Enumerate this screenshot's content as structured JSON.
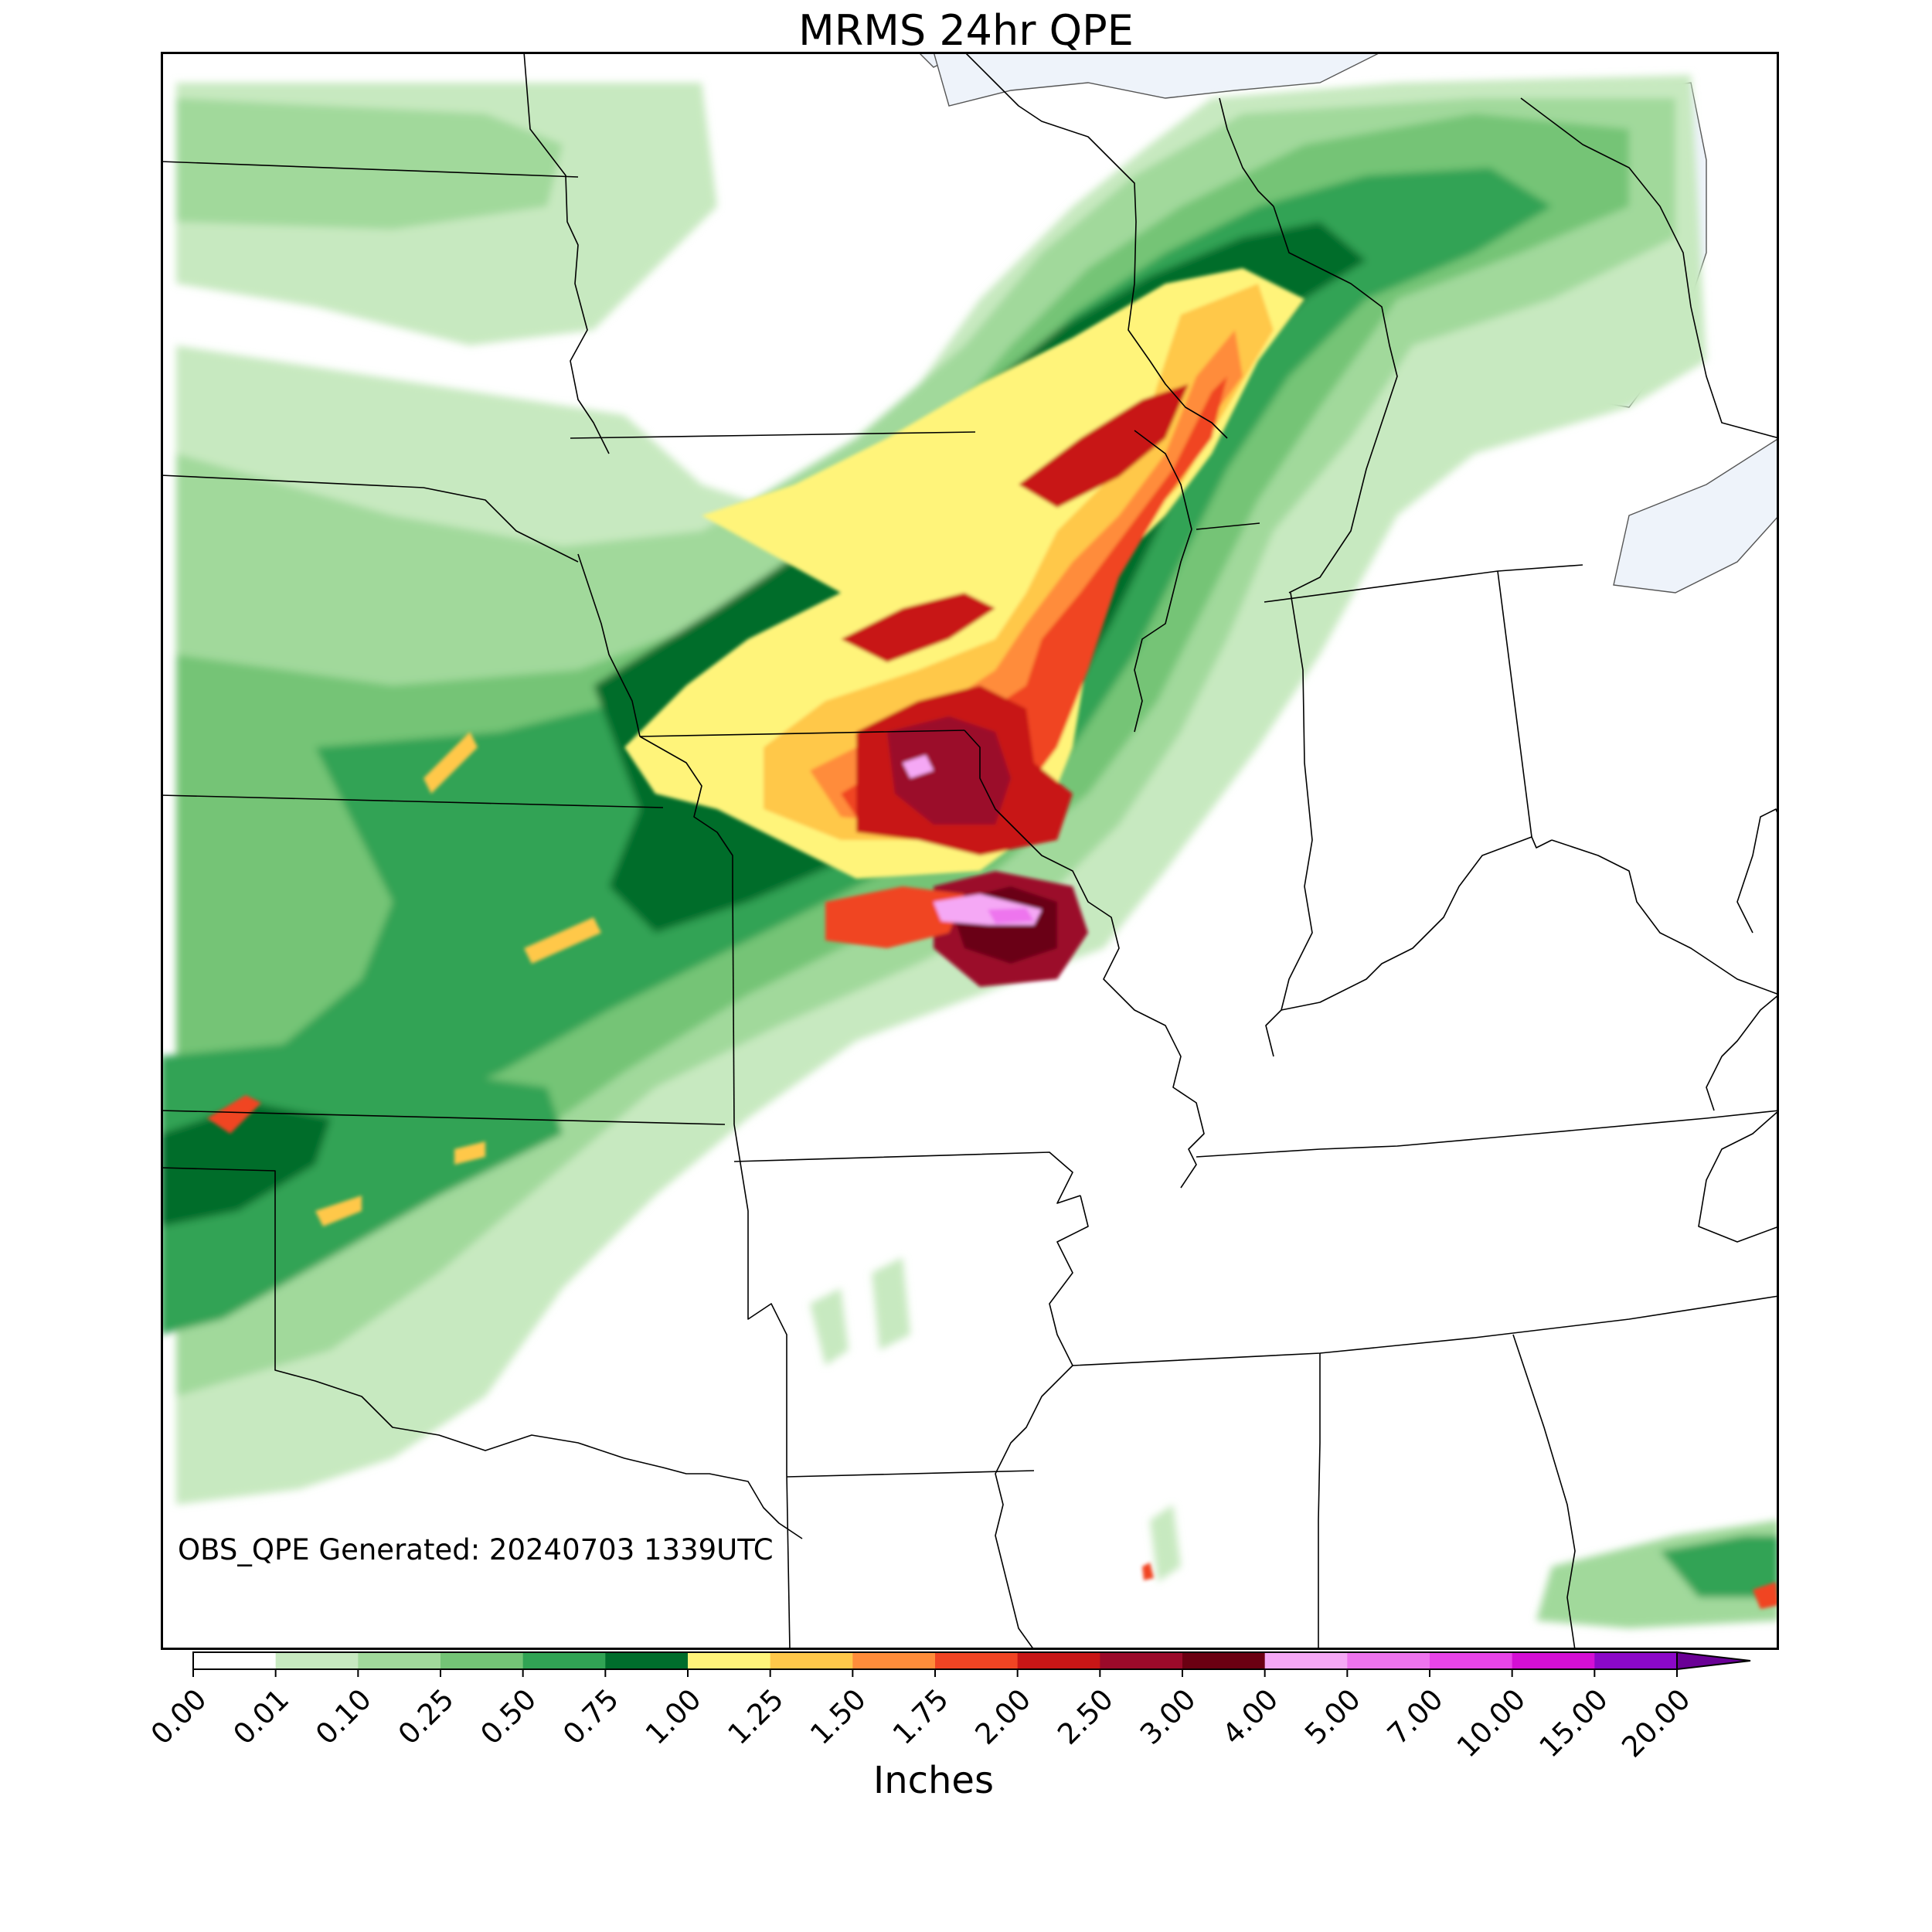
{
  "title": "MRMS 24hr QPE",
  "generated_label": "OBS_QPE Generated: 20240703 1339UTC",
  "colorbar": {
    "label": "Inches",
    "boundaries": [
      "0.00",
      "0.01",
      "0.10",
      "0.25",
      "0.50",
      "0.75",
      "1.00",
      "1.25",
      "1.50",
      "1.75",
      "2.00",
      "2.50",
      "3.00",
      "4.00",
      "5.00",
      "7.00",
      "10.00",
      "15.00",
      "20.00"
    ],
    "colors": [
      "#ffffff",
      "#c7e9c0",
      "#a1d99b",
      "#74c476",
      "#31a354",
      "#006d2c",
      "#fff47a",
      "#ffc84a",
      "#ff8c3a",
      "#f04423",
      "#c81616",
      "#9b0a2a",
      "#6b0012",
      "#f5a8f5",
      "#ee74ee",
      "#e845e8",
      "#d40fd4",
      "#8b08c8"
    ],
    "extend_color": "#6a0096"
  },
  "map": {
    "lake_color": "#eef3fa",
    "boundary_color": "#000000",
    "region": "Central United States"
  }
}
